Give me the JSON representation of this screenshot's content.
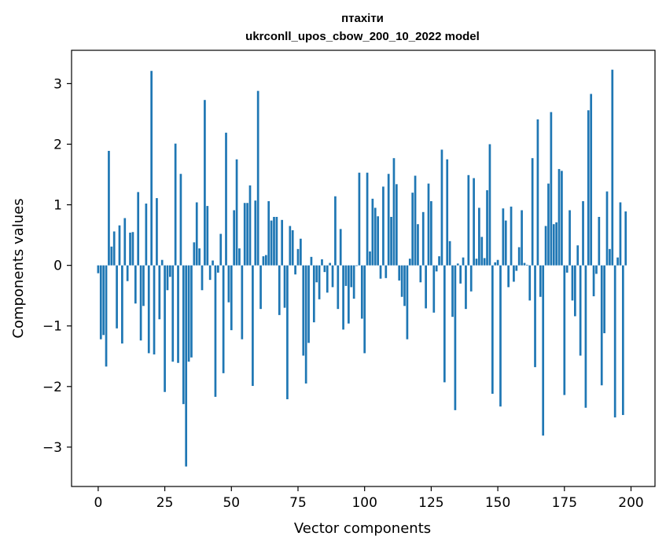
{
  "chart_data": {
    "type": "bar",
    "title": "птахіти",
    "subtitle": "ukrconll_upos_cbow_200_10_2022 model",
    "xlabel": "Vector components",
    "ylabel": "Components values",
    "xlim": [
      -10,
      209
    ],
    "ylim": [
      -3.65,
      3.55
    ],
    "xticks": [
      0,
      25,
      50,
      75,
      100,
      125,
      150,
      175,
      200
    ],
    "xtick_labels": [
      "0",
      "25",
      "50",
      "75",
      "100",
      "125",
      "150",
      "175",
      "200"
    ],
    "yticks": [
      -3,
      -2,
      -1,
      0,
      1,
      2,
      3
    ],
    "ytick_labels": [
      "−3",
      "−2",
      "−1",
      "0",
      "1",
      "2",
      "3"
    ],
    "grid": false,
    "bar_color": "#1f77b4",
    "values": [
      -0.13,
      -1.22,
      -1.15,
      -1.67,
      1.89,
      0.31,
      0.56,
      -1.04,
      0.66,
      -1.29,
      0.78,
      -0.26,
      0.54,
      0.55,
      -0.63,
      1.21,
      -1.24,
      -0.67,
      1.02,
      -1.45,
      3.21,
      -1.47,
      1.11,
      -0.89,
      0.09,
      -2.09,
      -0.41,
      -0.19,
      -1.59,
      2.01,
      -1.61,
      1.51,
      -2.29,
      -3.32,
      -1.59,
      -1.52,
      0.38,
      1.04,
      0.28,
      -0.41,
      2.73,
      0.98,
      -0.24,
      0.08,
      -2.17,
      -0.12,
      0.52,
      -1.78,
      2.19,
      -0.61,
      -1.07,
      0.91,
      1.75,
      0.28,
      -1.22,
      1.03,
      1.03,
      1.32,
      -1.99,
      1.07,
      2.88,
      -0.72,
      0.15,
      0.17,
      1.06,
      0.74,
      0.8,
      0.8,
      -0.82,
      0.75,
      -0.7,
      -2.21,
      0.65,
      0.58,
      -0.15,
      0.27,
      0.44,
      -1.49,
      -1.95,
      -1.28,
      0.14,
      -0.94,
      -0.28,
      -0.56,
      0.1,
      -0.11,
      -0.45,
      0.04,
      -0.36,
      1.14,
      -0.72,
      0.6,
      -1.06,
      -0.34,
      -0.96,
      -0.36,
      -0.55,
      -0.01,
      1.53,
      -0.88,
      -1.45,
      1.53,
      0.23,
      1.1,
      0.95,
      0.81,
      -0.22,
      1.3,
      -0.21,
      1.51,
      0.8,
      1.77,
      1.34,
      -0.25,
      -0.52,
      -0.67,
      -1.22,
      0.11,
      1.2,
      1.48,
      0.68,
      -0.28,
      0.88,
      -0.71,
      1.35,
      1.06,
      -0.78,
      -0.1,
      0.15,
      1.91,
      -1.93,
      1.75,
      0.4,
      -0.85,
      -2.39,
      0.03,
      -0.3,
      0.13,
      -0.72,
      1.49,
      -0.43,
      1.44,
      0.11,
      0.95,
      0.47,
      0.12,
      1.24,
      2.0,
      -2.12,
      0.05,
      0.09,
      -2.33,
      0.94,
      0.74,
      -0.36,
      0.97,
      -0.27,
      -0.09,
      0.3,
      0.91,
      0.04,
      0.01,
      -0.58,
      1.77,
      -1.68,
      2.41,
      -0.52,
      -2.81,
      0.65,
      1.35,
      2.53,
      0.68,
      0.71,
      1.59,
      1.56,
      -2.14,
      -0.12,
      0.91,
      -0.58,
      -0.84,
      0.33,
      -1.49,
      1.06,
      -2.35,
      2.56,
      2.83,
      -0.51,
      -0.14,
      0.8,
      -1.98,
      -1.12,
      1.22,
      0.27,
      3.23,
      -2.51,
      0.13,
      1.04,
      -2.47,
      0.89
    ]
  }
}
